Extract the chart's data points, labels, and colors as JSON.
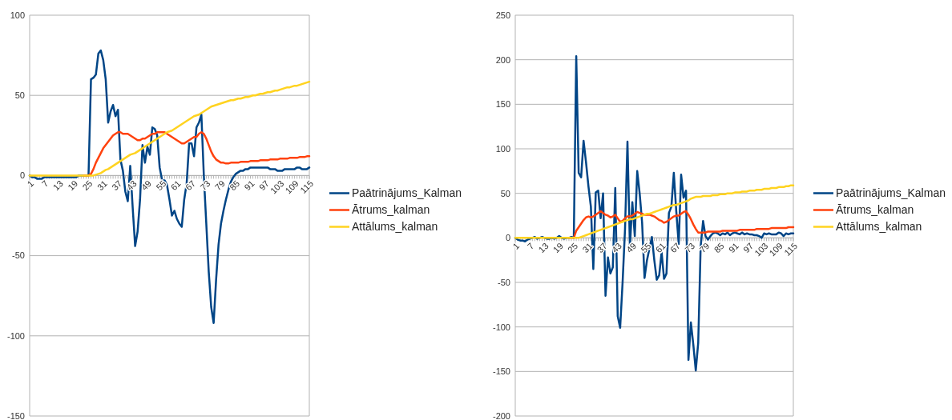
{
  "chart_data": [
    {
      "type": "line",
      "categories": [
        "1",
        null,
        null,
        null,
        null,
        null,
        "7",
        null,
        null,
        null,
        null,
        null,
        "13",
        null,
        null,
        null,
        null,
        null,
        "19",
        null,
        null,
        null,
        null,
        null,
        "25",
        null,
        null,
        null,
        null,
        null,
        "31",
        null,
        null,
        null,
        null,
        null,
        "37",
        null,
        null,
        null,
        null,
        null,
        "43",
        null,
        null,
        null,
        null,
        null,
        "49",
        null,
        null,
        null,
        null,
        null,
        "55",
        null,
        null,
        null,
        null,
        null,
        "61",
        null,
        null,
        null,
        null,
        null,
        "67",
        null,
        null,
        null,
        null,
        null,
        "73",
        null,
        null,
        null,
        null,
        null,
        "79",
        null,
        null,
        null,
        null,
        null,
        "85",
        null,
        null,
        null,
        null,
        null,
        "91",
        null,
        null,
        null,
        null,
        null,
        "97",
        null,
        null,
        null,
        null,
        null,
        "103",
        null,
        null,
        null,
        null,
        null,
        "109",
        null,
        null,
        null,
        null,
        null,
        "115"
      ],
      "ylim": [
        -150,
        100
      ],
      "yticks": [
        -150,
        -100,
        -50,
        0,
        50,
        100
      ],
      "grid": "y",
      "legend": "right",
      "marker": "none",
      "line_style": "solid",
      "series": [
        {
          "name": "Paātrinājums_Kalman",
          "color": "#004586",
          "values": [
            0,
            -1,
            -1,
            -2,
            -2,
            -2,
            -1,
            -1,
            -1,
            -1,
            -1,
            -1,
            -1,
            -1,
            -1,
            -1,
            -1,
            -1,
            -1,
            -1,
            0,
            0,
            0,
            0,
            0,
            60,
            61,
            63,
            76,
            78,
            72,
            60,
            33,
            40,
            44,
            37,
            41,
            10,
            3,
            -10,
            -16,
            6,
            -20,
            -44,
            -35,
            -15,
            19,
            8,
            18,
            13,
            30,
            29,
            25,
            5,
            -3,
            -3,
            -6,
            -15,
            -25,
            -22,
            -27,
            -30,
            -32,
            -15,
            -5,
            20,
            20,
            12,
            30,
            33,
            38,
            0,
            -30,
            -60,
            -82,
            -92,
            -65,
            -43,
            -30,
            -22,
            -15,
            -9,
            -4,
            -1,
            1,
            2,
            3,
            3,
            4,
            4,
            5,
            5,
            5,
            5,
            5,
            5,
            5,
            5,
            4,
            4,
            4,
            3,
            3,
            3,
            4,
            4,
            4,
            4,
            4,
            5,
            5,
            4,
            4,
            4,
            5
          ]
        },
        {
          "name": "Ātrums_kalman",
          "color": "#ff420e",
          "values": [
            null,
            null,
            null,
            null,
            null,
            null,
            null,
            null,
            null,
            null,
            null,
            null,
            null,
            null,
            null,
            null,
            null,
            null,
            null,
            null,
            null,
            null,
            0,
            0,
            0,
            1,
            4,
            8,
            11,
            14,
            17,
            19,
            21,
            23,
            25,
            26,
            27,
            27,
            26,
            26,
            26,
            25,
            24,
            23,
            22,
            22,
            23,
            23,
            24,
            25,
            26,
            26,
            27,
            27,
            27,
            27,
            26,
            25,
            24,
            23,
            22,
            21,
            20,
            20,
            21,
            22,
            23,
            24,
            24,
            26,
            27,
            26,
            23,
            19,
            15,
            12,
            10,
            9,
            8,
            8,
            7.5,
            7.5,
            8,
            8,
            8,
            8,
            8.5,
            8.5,
            8.5,
            8.5,
            9,
            9,
            9,
            9,
            9.5,
            9.5,
            9.5,
            9.5,
            10,
            10,
            10,
            10,
            10.5,
            10.5,
            10.5,
            10.5,
            11,
            11,
            11,
            11,
            11.5,
            11.5,
            11.5,
            12,
            12
          ]
        },
        {
          "name": "Attālums_kalman",
          "color": "#ffd320",
          "values": [
            0,
            0,
            0,
            0,
            0,
            0,
            0,
            0,
            0,
            0,
            0,
            0,
            0,
            0,
            0,
            0,
            0,
            0,
            0,
            0,
            0,
            0,
            0,
            0,
            0,
            0,
            0,
            0.5,
            1,
            1.5,
            2.5,
            3.5,
            4,
            5,
            6,
            7,
            8,
            9,
            10,
            11,
            12,
            13,
            13.5,
            14,
            15,
            16,
            17,
            18,
            19,
            20,
            21,
            22,
            23,
            24,
            25,
            26,
            27,
            27.5,
            28,
            29,
            30,
            31,
            32,
            33,
            34,
            35,
            36,
            37,
            37.5,
            38,
            39,
            40,
            41,
            42,
            43,
            43.5,
            44,
            44.5,
            45,
            45.5,
            46,
            46.5,
            47,
            47,
            47.5,
            48,
            48,
            48.5,
            49,
            49,
            49.5,
            50,
            50,
            50.5,
            51,
            51,
            51.5,
            52,
            52,
            52.5,
            53,
            53,
            53.5,
            54,
            54.5,
            55,
            55,
            55.5,
            56,
            56,
            56.5,
            57,
            57.5,
            58,
            58.5
          ]
        }
      ]
    },
    {
      "type": "line",
      "categories": [
        "1",
        null,
        null,
        null,
        null,
        null,
        "7",
        null,
        null,
        null,
        null,
        null,
        "13",
        null,
        null,
        null,
        null,
        null,
        "19",
        null,
        null,
        null,
        null,
        null,
        "25",
        null,
        null,
        null,
        null,
        null,
        "31",
        null,
        null,
        null,
        null,
        null,
        "37",
        null,
        null,
        null,
        null,
        null,
        "43",
        null,
        null,
        null,
        null,
        null,
        "49",
        null,
        null,
        null,
        null,
        null,
        "55",
        null,
        null,
        null,
        null,
        null,
        "61",
        null,
        null,
        null,
        null,
        null,
        "67",
        null,
        null,
        null,
        null,
        null,
        "73",
        null,
        null,
        null,
        null,
        null,
        "79",
        null,
        null,
        null,
        null,
        null,
        "85",
        null,
        null,
        null,
        null,
        null,
        "91",
        null,
        null,
        null,
        null,
        null,
        "97",
        null,
        null,
        null,
        null,
        null,
        "103",
        null,
        null,
        null,
        null,
        null,
        "109",
        null,
        null,
        null,
        null,
        null,
        "115"
      ],
      "ylim": [
        -200,
        250
      ],
      "yticks": [
        -200,
        -150,
        -100,
        -50,
        0,
        50,
        100,
        150,
        200,
        250
      ],
      "grid": "y",
      "legend": "right",
      "marker": "none",
      "line_style": "solid",
      "series": [
        {
          "name": "Paātrinājums_Kalman",
          "color": "#004586",
          "values": [
            0,
            -2,
            -3,
            -3,
            -4,
            -2,
            -1,
            0,
            1,
            -1,
            0,
            1,
            0,
            -1,
            -1,
            0,
            -1,
            0,
            2,
            0,
            -1,
            0,
            0,
            1,
            0,
            204,
            73,
            68,
            109,
            85,
            58,
            35,
            -35,
            51,
            53,
            22,
            50,
            -65,
            -22,
            -40,
            -33,
            56,
            -88,
            -101,
            -50,
            10,
            108,
            -10,
            40,
            2,
            75,
            50,
            17,
            -45,
            -25,
            -12,
            1,
            -25,
            -47,
            -42,
            -16,
            -46,
            -40,
            28,
            35,
            73,
            30,
            -7,
            71,
            45,
            53,
            -137,
            -95,
            -120,
            -149,
            -118,
            -10,
            19,
            2,
            -2,
            2,
            5,
            6,
            5,
            3,
            5,
            4,
            6,
            3,
            5,
            6,
            5,
            4,
            6,
            4,
            5,
            4,
            4,
            3,
            3,
            2,
            0,
            5,
            4,
            5,
            4,
            4,
            4,
            6,
            5,
            2,
            5,
            4,
            5,
            5
          ]
        },
        {
          "name": "Ātrums_kalman",
          "color": "#ff420e",
          "values": [
            null,
            null,
            null,
            null,
            null,
            null,
            null,
            null,
            null,
            null,
            null,
            null,
            null,
            null,
            null,
            null,
            null,
            null,
            null,
            null,
            null,
            null,
            0,
            0,
            0,
            8,
            12,
            16,
            20,
            23,
            24,
            23,
            24,
            26,
            28,
            30,
            28,
            26,
            25,
            23,
            24,
            26,
            22,
            18,
            19,
            22,
            24,
            24,
            25,
            27,
            29,
            28,
            27,
            26,
            26,
            26,
            25,
            24,
            22,
            20,
            19,
            17,
            18,
            20,
            22,
            24,
            25,
            25,
            27,
            29,
            30,
            26,
            21,
            15,
            10,
            6,
            6,
            6,
            6,
            7,
            7,
            7,
            7,
            7,
            7,
            8,
            8,
            8,
            8,
            8,
            8,
            8,
            9,
            9,
            9,
            9,
            9,
            9,
            9,
            10,
            10,
            10,
            10,
            10,
            10,
            11,
            11,
            11,
            11,
            11,
            11,
            11,
            12,
            12,
            12
          ]
        },
        {
          "name": "Attālums_kalman",
          "color": "#ffd320",
          "values": [
            0,
            0,
            0,
            0,
            0,
            0,
            0,
            0,
            0,
            0,
            0,
            0,
            0,
            0,
            0,
            0,
            0,
            0,
            0,
            0,
            0,
            0,
            0,
            0,
            0,
            0,
            0,
            1,
            2,
            3,
            4,
            5,
            6,
            7,
            8,
            9,
            10,
            11,
            12,
            13,
            14,
            15,
            16,
            17,
            18,
            19,
            20,
            21,
            21,
            22,
            23,
            24,
            25,
            26,
            27,
            27,
            28,
            29,
            30,
            31,
            32,
            33,
            34,
            35,
            36,
            37,
            37,
            38,
            39,
            40,
            41,
            42,
            44,
            45,
            46,
            46,
            46,
            47,
            47,
            47,
            47,
            48,
            48,
            48,
            49,
            49,
            49,
            50,
            50,
            50,
            51,
            51,
            51,
            52,
            52,
            52,
            53,
            53,
            53,
            54,
            54,
            54,
            55,
            55,
            55,
            56,
            56,
            56,
            57,
            57,
            57,
            58,
            58,
            59,
            59
          ]
        }
      ]
    }
  ]
}
